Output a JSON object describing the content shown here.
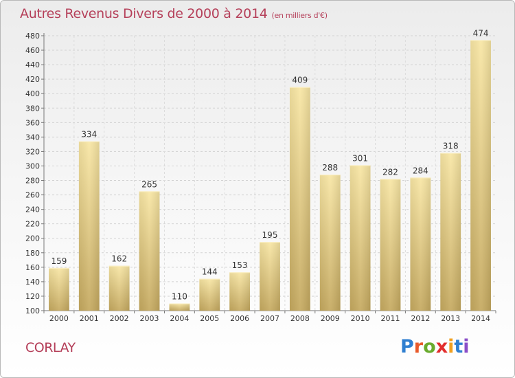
{
  "header": {
    "title": "Autres Revenus Divers de 2000 à 2014",
    "subtitle": "(en milliers d'€)"
  },
  "footer": {
    "location": "CORLAY",
    "logo_text": "Proxiti",
    "logo_colors": [
      "#2f7fd0",
      "#e85a2a",
      "#6aab2e",
      "#e22d2d",
      "#f0a020",
      "#2f7fd0",
      "#8a4ec8"
    ]
  },
  "colors": {
    "title": "#b5405a",
    "bar_light": "#f7e3a0",
    "bar_dark": "#c9ad62"
  },
  "chart_data": {
    "type": "bar",
    "title": "Autres Revenus Divers de 2000 à 2014",
    "subtitle": "(en milliers d'€)",
    "categories": [
      "2000",
      "2001",
      "2002",
      "2003",
      "2004",
      "2005",
      "2006",
      "2007",
      "2008",
      "2009",
      "2010",
      "2011",
      "2012",
      "2013",
      "2014"
    ],
    "values": [
      159,
      334,
      162,
      265,
      110,
      144,
      153,
      195,
      409,
      288,
      301,
      282,
      284,
      318,
      474
    ],
    "ylim": [
      100,
      480
    ],
    "yticks": [
      100,
      120,
      140,
      160,
      180,
      200,
      220,
      240,
      260,
      280,
      300,
      320,
      340,
      360,
      380,
      400,
      420,
      440,
      460,
      480
    ],
    "grid": true,
    "legend": "none"
  }
}
